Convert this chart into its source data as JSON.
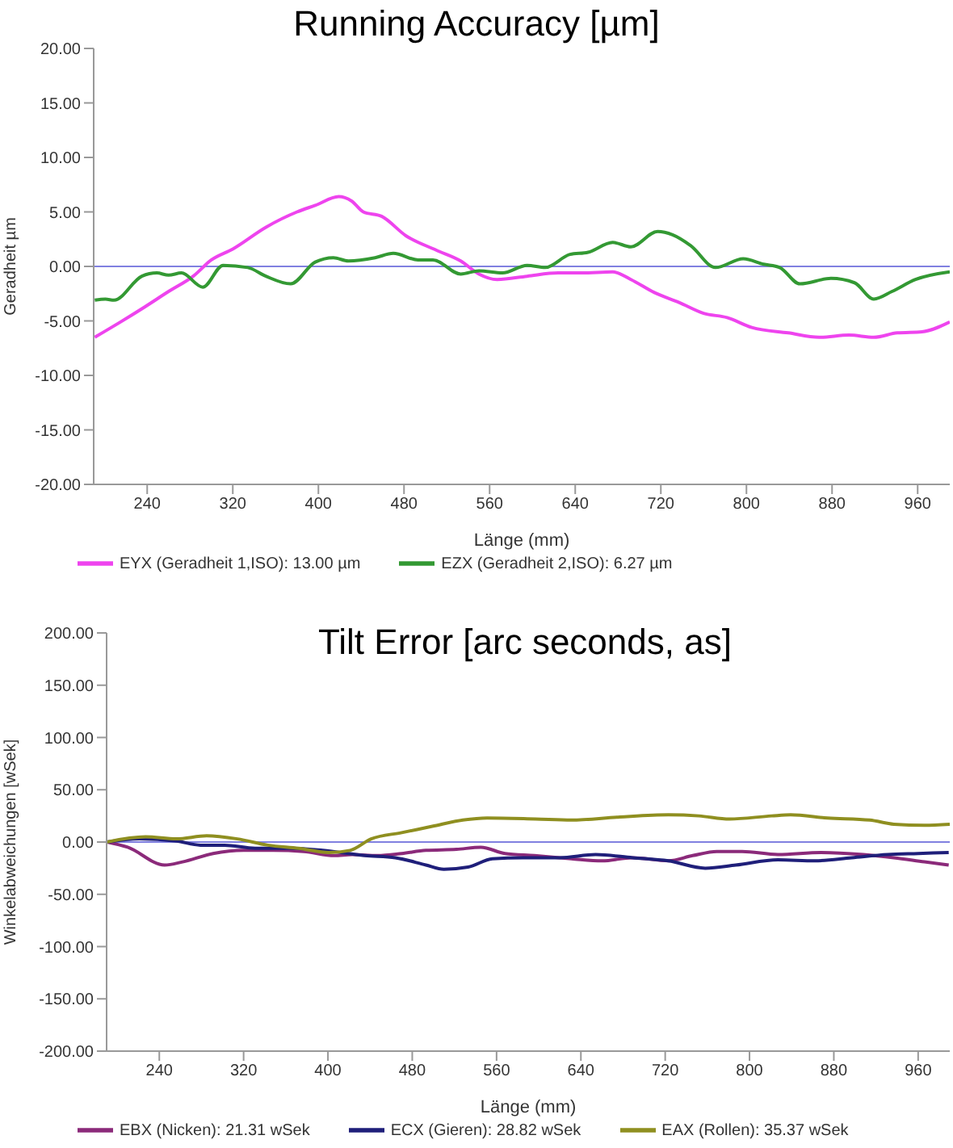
{
  "chart_data": [
    {
      "type": "line",
      "title": "Running Accuracy [µm]",
      "xlabel": "Länge (mm)",
      "ylabel": "Geradheit µm",
      "xlim": [
        190,
        990
      ],
      "xticks": [
        240,
        320,
        400,
        480,
        560,
        640,
        720,
        800,
        880,
        960
      ],
      "ylim": [
        -20,
        20
      ],
      "yticks": [
        {
          "value": -20,
          "label": "-20.00"
        },
        {
          "value": -15,
          "label": "-15.00"
        },
        {
          "value": -10,
          "label": "-10.00"
        },
        {
          "value": -5,
          "label": "-5.00"
        },
        {
          "value": 0,
          "label": "0.00"
        },
        {
          "value": 5,
          "label": "5.00"
        },
        {
          "value": 10,
          "label": "10.00"
        },
        {
          "value": 15,
          "label": "15.00"
        },
        {
          "value": 20,
          "label": "20.00"
        }
      ],
      "legend": "bottom",
      "ref_lines": [
        {
          "axis": "y",
          "value": 0,
          "color": "#8080e0"
        }
      ],
      "series": [
        {
          "name": "EYX (Geradheit 1,ISO): 13.00 µm",
          "color": "#ee44ee",
          "x": [
            191,
            215,
            238,
            260,
            283,
            300,
            320,
            351,
            380,
            397,
            419,
            431,
            442,
            459,
            482,
            510,
            533,
            550,
            567,
            595,
            624,
            646,
            675,
            692,
            714,
            737,
            760,
            782,
            805,
            839,
            868,
            896,
            919,
            941,
            964,
            990
          ],
          "values": [
            -6.5,
            -5.1,
            -3.7,
            -2.3,
            -0.9,
            0.6,
            1.6,
            3.6,
            5.0,
            5.6,
            6.4,
            6.0,
            5.0,
            4.6,
            2.8,
            1.5,
            0.5,
            -0.7,
            -1.2,
            -0.9,
            -0.6,
            -0.6,
            -0.5,
            -1.2,
            -2.4,
            -3.3,
            -4.3,
            -4.7,
            -5.6,
            -6.1,
            -6.5,
            -6.3,
            -6.5,
            -6.1,
            -6.0,
            -5.1
          ]
        },
        {
          "name": "EZX (Geradheit 2,ISO): 6.27 µm",
          "color": "#339933",
          "x": [
            191,
            201,
            209,
            235,
            249,
            260,
            272,
            292,
            311,
            334,
            351,
            374,
            397,
            414,
            428,
            453,
            470,
            493,
            507,
            533,
            550,
            572,
            595,
            612,
            635,
            652,
            675,
            692,
            717,
            731,
            748,
            771,
            797,
            816,
            831,
            850,
            879,
            901,
            919,
            936,
            958,
            990
          ],
          "values": [
            -3.1,
            -3.0,
            -3.1,
            -0.9,
            -0.6,
            -0.8,
            -0.6,
            -1.9,
            0.1,
            -0.1,
            -0.9,
            -1.6,
            0.4,
            0.8,
            0.5,
            0.8,
            1.2,
            0.6,
            0.6,
            -0.7,
            -0.4,
            -0.6,
            0.1,
            -0.1,
            1.1,
            1.3,
            2.2,
            1.8,
            3.2,
            2.9,
            1.9,
            -0.1,
            0.7,
            0.2,
            -0.1,
            -1.6,
            -1.1,
            -1.5,
            -3.0,
            -2.3,
            -1.2,
            -0.5
          ]
        }
      ]
    },
    {
      "type": "line",
      "title": "Tilt Error [arc seconds, as]",
      "xlabel": "Länge (mm)",
      "ylabel": "Winkelabweichungen [wSek]",
      "xlim": [
        190,
        990
      ],
      "xticks": [
        240,
        320,
        400,
        480,
        560,
        640,
        720,
        800,
        880,
        960
      ],
      "ylim": [
        -200,
        200
      ],
      "yticks": [
        {
          "value": -200,
          "label": "-200.00"
        },
        {
          "value": -150,
          "label": "-150.00"
        },
        {
          "value": -100,
          "label": "-100.00"
        },
        {
          "value": -50,
          "label": "-50.00"
        },
        {
          "value": 0,
          "label": "0.00"
        },
        {
          "value": 50,
          "label": "50.00"
        },
        {
          "value": 100,
          "label": "100.00"
        },
        {
          "value": 150,
          "label": "150.00"
        },
        {
          "value": 200,
          "label": "200.00"
        }
      ],
      "legend": "bottom",
      "ref_lines": [
        {
          "axis": "y",
          "value": 0,
          "color": "#8080e0"
        }
      ],
      "series": [
        {
          "name": "EBX (Nicken): 21.31 wSek",
          "color": "#8b2a7a",
          "x": [
            190,
            210,
            245,
            262,
            291,
            320,
            348,
            377,
            406,
            423,
            447,
            470,
            493,
            522,
            545,
            568,
            596,
            631,
            660,
            689,
            723,
            746,
            769,
            793,
            827,
            868,
            908,
            937,
            966,
            989
          ],
          "values": [
            0,
            -5,
            -22,
            -19,
            -11,
            -8,
            -8,
            -9,
            -13,
            -12,
            -13,
            -11,
            -8,
            -7,
            -5,
            -11,
            -13,
            -16,
            -18,
            -15,
            -18,
            -13,
            -9,
            -9,
            -12,
            -10,
            -12,
            -15,
            -19,
            -22
          ]
        },
        {
          "name": "ECX (Gieren): 28.82 wSek",
          "color": "#1f1f7a",
          "x": [
            190,
            221,
            256,
            279,
            302,
            331,
            366,
            395,
            435,
            464,
            493,
            510,
            533,
            556,
            585,
            620,
            654,
            689,
            723,
            758,
            787,
            827,
            862,
            897,
            931,
            960,
            989
          ],
          "values": [
            0,
            3,
            1,
            -3,
            -3,
            -6,
            -6,
            -8,
            -13,
            -15,
            -22,
            -26,
            -24,
            -16,
            -15,
            -15,
            -12,
            -15,
            -18,
            -25,
            -22,
            -17,
            -18,
            -15,
            -12,
            -11,
            -10
          ]
        },
        {
          "name": "EAX (Rollen): 35.37 wSek",
          "color": "#8f8f20",
          "x": [
            190,
            227,
            256,
            285,
            314,
            343,
            372,
            401,
            421,
            441,
            470,
            499,
            528,
            551,
            597,
            631,
            677,
            723,
            752,
            781,
            821,
            839,
            874,
            914,
            937,
            966,
            990
          ],
          "values": [
            0,
            5,
            3,
            6,
            3,
            -3,
            -6,
            -10,
            -8,
            3,
            9,
            15,
            21,
            23,
            22,
            21,
            24,
            26,
            25,
            22,
            25,
            26,
            23,
            21,
            17,
            16,
            17
          ]
        }
      ]
    }
  ]
}
